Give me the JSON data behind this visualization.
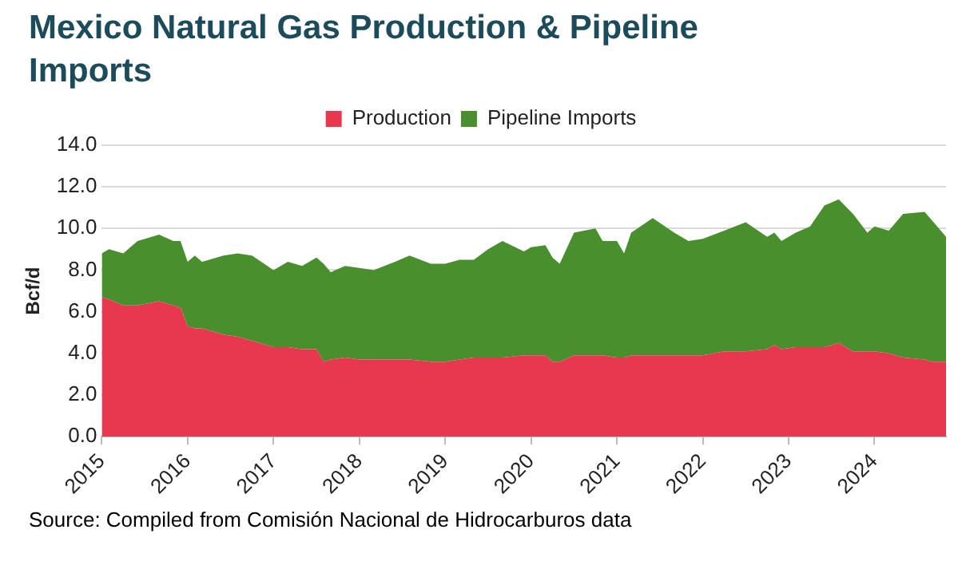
{
  "chart_data": {
    "type": "area",
    "title": "Mexico Natural Gas Production & Pipeline Imports",
    "ylabel": "Bcf/d",
    "stacked": true,
    "grid": "y",
    "legend": "top",
    "marker": "none",
    "x": [
      "2015-01",
      "2015-02",
      "2015-04",
      "2015-06",
      "2015-09",
      "2015-11",
      "2015-12",
      "2016-01",
      "2016-02",
      "2016-03",
      "2016-06",
      "2016-08",
      "2016-10",
      "2017-01",
      "2017-03",
      "2017-05",
      "2017-07",
      "2017-08",
      "2017-09",
      "2017-11",
      "2018-01",
      "2018-03",
      "2018-06",
      "2018-08",
      "2018-11",
      "2019-01",
      "2019-03",
      "2019-05",
      "2019-07",
      "2019-09",
      "2019-12",
      "2020-01",
      "2020-03",
      "2020-04",
      "2020-05",
      "2020-07",
      "2020-10",
      "2020-11",
      "2021-01",
      "2021-02",
      "2021-03",
      "2021-06",
      "2021-09",
      "2021-11",
      "2022-01",
      "2022-04",
      "2022-07",
      "2022-10",
      "2022-11",
      "2022-12",
      "2023-02",
      "2023-04",
      "2023-06",
      "2023-08",
      "2023-10",
      "2023-12",
      "2024-01",
      "2024-03",
      "2024-05",
      "2024-08",
      "2024-09",
      "2024-11"
    ],
    "series": [
      {
        "name": "Production",
        "color": "#e8384f",
        "values": [
          6.7,
          6.6,
          6.3,
          6.3,
          6.5,
          6.3,
          6.2,
          5.3,
          5.2,
          5.2,
          4.9,
          4.8,
          4.6,
          4.3,
          4.3,
          4.2,
          4.2,
          3.6,
          3.7,
          3.8,
          3.7,
          3.7,
          3.7,
          3.7,
          3.6,
          3.6,
          3.7,
          3.8,
          3.8,
          3.8,
          3.9,
          3.9,
          3.9,
          3.6,
          3.6,
          3.9,
          3.9,
          3.9,
          3.8,
          3.8,
          3.9,
          3.9,
          3.9,
          3.9,
          3.9,
          4.1,
          4.1,
          4.2,
          4.4,
          4.2,
          4.3,
          4.3,
          4.3,
          4.5,
          4.1,
          4.1,
          4.1,
          4.0,
          3.8,
          3.7,
          3.6,
          3.6
        ]
      },
      {
        "name": "Pipeline Imports",
        "color": "#4a8f2e",
        "values": [
          2.1,
          2.4,
          2.5,
          3.1,
          3.2,
          3.1,
          3.2,
          3.1,
          3.5,
          3.2,
          3.8,
          4.0,
          4.1,
          3.7,
          4.1,
          4.0,
          4.4,
          4.7,
          4.2,
          4.4,
          4.4,
          4.3,
          4.7,
          5.0,
          4.7,
          4.7,
          4.8,
          4.7,
          5.2,
          5.6,
          5.0,
          5.2,
          5.3,
          5.0,
          4.7,
          5.9,
          6.1,
          5.5,
          5.6,
          5.0,
          5.9,
          6.6,
          5.9,
          5.5,
          5.6,
          5.8,
          6.2,
          5.4,
          5.4,
          5.2,
          5.5,
          5.8,
          6.8,
          6.9,
          6.6,
          5.7,
          6.0,
          5.9,
          6.9,
          7.1,
          6.8,
          6.0
        ]
      }
    ],
    "xlim": [
      "2015-01",
      "2024-11"
    ],
    "xticks": [
      "2015",
      "2016",
      "2017",
      "2018",
      "2019",
      "2020",
      "2021",
      "2022",
      "2023",
      "2024"
    ],
    "ylim": [
      0,
      14
    ],
    "yticks": [
      {
        "value": 0,
        "label": "0.0"
      },
      {
        "value": 2,
        "label": "2.0"
      },
      {
        "value": 4,
        "label": "4.0"
      },
      {
        "value": 6,
        "label": "6.0"
      },
      {
        "value": 8,
        "label": "8.0"
      },
      {
        "value": 10,
        "label": "10.0"
      },
      {
        "value": 12,
        "label": "12.0"
      },
      {
        "value": 14,
        "label": "14.0"
      }
    ],
    "annotations": [
      "Source: Compiled from Comisión Nacional de Hidrocarburos data"
    ]
  }
}
